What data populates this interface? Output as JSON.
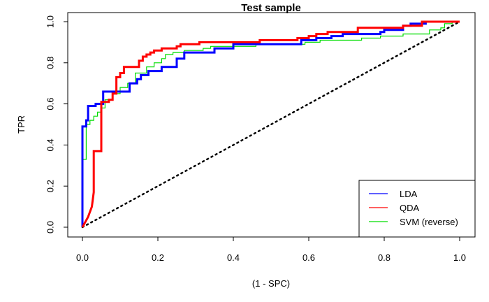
{
  "chart_data": {
    "type": "line",
    "title": "Test sample",
    "xlabel": "(1 - SPC)",
    "ylabel": "TPR",
    "xlim": [
      0,
      1
    ],
    "ylim": [
      0,
      1
    ],
    "x_ticks": [
      0.0,
      0.2,
      0.4,
      0.6,
      0.8,
      1.0
    ],
    "y_ticks": [
      0.0,
      0.2,
      0.4,
      0.6,
      0.8,
      1.0
    ],
    "x_tick_labels": [
      "0.0",
      "0.2",
      "0.4",
      "0.6",
      "0.8",
      "1.0"
    ],
    "y_tick_labels": [
      "0.0",
      "0.2",
      "0.4",
      "0.6",
      "0.8",
      "1.0"
    ],
    "grid": false,
    "legend_position": "bottom-right",
    "diagonal": {
      "style": "dotted",
      "color": "#000000",
      "points": [
        [
          0,
          0
        ],
        [
          1,
          1
        ]
      ]
    },
    "series": [
      {
        "name": "LDA",
        "color": "#0000ff",
        "points": [
          [
            0,
            0
          ],
          [
            0,
            0.49
          ],
          [
            0.01,
            0.49
          ],
          [
            0.01,
            0.52
          ],
          [
            0.015,
            0.52
          ],
          [
            0.015,
            0.59
          ],
          [
            0.035,
            0.59
          ],
          [
            0.035,
            0.6
          ],
          [
            0.055,
            0.6
          ],
          [
            0.055,
            0.66
          ],
          [
            0.125,
            0.66
          ],
          [
            0.125,
            0.7
          ],
          [
            0.145,
            0.7
          ],
          [
            0.145,
            0.72
          ],
          [
            0.155,
            0.72
          ],
          [
            0.155,
            0.74
          ],
          [
            0.175,
            0.74
          ],
          [
            0.175,
            0.76
          ],
          [
            0.21,
            0.76
          ],
          [
            0.21,
            0.78
          ],
          [
            0.25,
            0.78
          ],
          [
            0.25,
            0.82
          ],
          [
            0.27,
            0.82
          ],
          [
            0.27,
            0.85
          ],
          [
            0.35,
            0.85
          ],
          [
            0.35,
            0.87
          ],
          [
            0.4,
            0.87
          ],
          [
            0.4,
            0.89
          ],
          [
            0.58,
            0.89
          ],
          [
            0.58,
            0.91
          ],
          [
            0.62,
            0.91
          ],
          [
            0.62,
            0.92
          ],
          [
            0.66,
            0.92
          ],
          [
            0.66,
            0.93
          ],
          [
            0.69,
            0.93
          ],
          [
            0.69,
            0.94
          ],
          [
            0.79,
            0.94
          ],
          [
            0.79,
            0.95
          ],
          [
            0.8,
            0.95
          ],
          [
            0.8,
            0.96
          ],
          [
            0.85,
            0.96
          ],
          [
            0.85,
            0.98
          ],
          [
            0.87,
            0.98
          ],
          [
            0.87,
            0.99
          ],
          [
            0.91,
            0.99
          ],
          [
            0.91,
            1.0
          ],
          [
            1.0,
            1.0
          ]
        ]
      },
      {
        "name": "QDA",
        "color": "#ff0000",
        "points": [
          [
            0,
            0
          ],
          [
            0.015,
            0.05
          ],
          [
            0.025,
            0.1
          ],
          [
            0.03,
            0.17
          ],
          [
            0.03,
            0.37
          ],
          [
            0.05,
            0.37
          ],
          [
            0.05,
            0.61
          ],
          [
            0.07,
            0.61
          ],
          [
            0.07,
            0.62
          ],
          [
            0.08,
            0.62
          ],
          [
            0.08,
            0.65
          ],
          [
            0.09,
            0.65
          ],
          [
            0.09,
            0.73
          ],
          [
            0.1,
            0.73
          ],
          [
            0.1,
            0.75
          ],
          [
            0.11,
            0.75
          ],
          [
            0.11,
            0.78
          ],
          [
            0.15,
            0.78
          ],
          [
            0.15,
            0.81
          ],
          [
            0.16,
            0.81
          ],
          [
            0.16,
            0.83
          ],
          [
            0.17,
            0.83
          ],
          [
            0.17,
            0.84
          ],
          [
            0.18,
            0.84
          ],
          [
            0.18,
            0.85
          ],
          [
            0.19,
            0.85
          ],
          [
            0.19,
            0.86
          ],
          [
            0.21,
            0.86
          ],
          [
            0.21,
            0.87
          ],
          [
            0.25,
            0.87
          ],
          [
            0.25,
            0.88
          ],
          [
            0.26,
            0.88
          ],
          [
            0.26,
            0.89
          ],
          [
            0.31,
            0.89
          ],
          [
            0.31,
            0.9
          ],
          [
            0.47,
            0.9
          ],
          [
            0.47,
            0.91
          ],
          [
            0.57,
            0.91
          ],
          [
            0.57,
            0.92
          ],
          [
            0.6,
            0.92
          ],
          [
            0.6,
            0.93
          ],
          [
            0.62,
            0.93
          ],
          [
            0.62,
            0.94
          ],
          [
            0.65,
            0.94
          ],
          [
            0.65,
            0.95
          ],
          [
            0.73,
            0.95
          ],
          [
            0.73,
            0.97
          ],
          [
            0.85,
            0.97
          ],
          [
            0.85,
            0.98
          ],
          [
            0.9,
            0.98
          ],
          [
            0.9,
            1.0
          ],
          [
            1.0,
            1.0
          ]
        ]
      },
      {
        "name": "SVM (reverse)",
        "color": "#00dd00",
        "points": [
          [
            0,
            0
          ],
          [
            0,
            0.33
          ],
          [
            0.01,
            0.33
          ],
          [
            0.01,
            0.5
          ],
          [
            0.02,
            0.5
          ],
          [
            0.02,
            0.52
          ],
          [
            0.03,
            0.52
          ],
          [
            0.03,
            0.54
          ],
          [
            0.04,
            0.54
          ],
          [
            0.04,
            0.56
          ],
          [
            0.05,
            0.56
          ],
          [
            0.05,
            0.58
          ],
          [
            0.06,
            0.58
          ],
          [
            0.06,
            0.62
          ],
          [
            0.08,
            0.62
          ],
          [
            0.08,
            0.65
          ],
          [
            0.1,
            0.65
          ],
          [
            0.1,
            0.68
          ],
          [
            0.12,
            0.68
          ],
          [
            0.12,
            0.7
          ],
          [
            0.14,
            0.7
          ],
          [
            0.14,
            0.75
          ],
          [
            0.17,
            0.75
          ],
          [
            0.17,
            0.78
          ],
          [
            0.19,
            0.78
          ],
          [
            0.19,
            0.8
          ],
          [
            0.21,
            0.8
          ],
          [
            0.21,
            0.82
          ],
          [
            0.22,
            0.82
          ],
          [
            0.22,
            0.84
          ],
          [
            0.24,
            0.84
          ],
          [
            0.24,
            0.85
          ],
          [
            0.27,
            0.85
          ],
          [
            0.27,
            0.86
          ],
          [
            0.32,
            0.86
          ],
          [
            0.32,
            0.87
          ],
          [
            0.34,
            0.87
          ],
          [
            0.34,
            0.88
          ],
          [
            0.46,
            0.88
          ],
          [
            0.46,
            0.89
          ],
          [
            0.59,
            0.89
          ],
          [
            0.59,
            0.9
          ],
          [
            0.63,
            0.9
          ],
          [
            0.63,
            0.91
          ],
          [
            0.74,
            0.91
          ],
          [
            0.74,
            0.92
          ],
          [
            0.79,
            0.92
          ],
          [
            0.79,
            0.93
          ],
          [
            0.85,
            0.93
          ],
          [
            0.85,
            0.94
          ],
          [
            0.92,
            0.94
          ],
          [
            0.92,
            0.96
          ],
          [
            0.95,
            0.96
          ],
          [
            0.95,
            0.97
          ],
          [
            0.96,
            0.97
          ],
          [
            0.96,
            0.99
          ],
          [
            0.98,
            0.99
          ],
          [
            0.98,
            1.0
          ],
          [
            1.0,
            1.0
          ]
        ]
      }
    ]
  }
}
